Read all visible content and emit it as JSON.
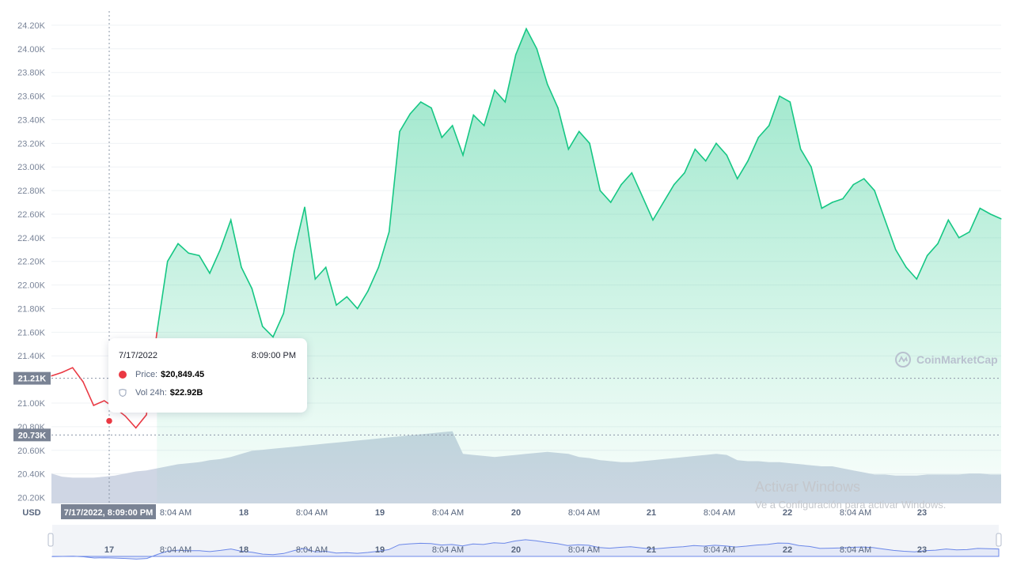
{
  "chart_data": {
    "type": "area",
    "currency": "USD",
    "y_ticks": [
      "24.20K",
      "24.00K",
      "23.80K",
      "23.60K",
      "23.40K",
      "23.20K",
      "23.00K",
      "22.80K",
      "22.60K",
      "22.40K",
      "22.20K",
      "22.00K",
      "21.80K",
      "21.60K",
      "21.40K",
      "21.00K",
      "20.80K",
      "20.60K",
      "20.40K",
      "20.20K"
    ],
    "ylim": [
      20150,
      24320
    ],
    "x_ticks": [
      "8:04 AM",
      "18",
      "8:04 AM",
      "19",
      "8:04 AM",
      "20",
      "8:04 AM",
      "21",
      "8:04 AM",
      "22",
      "8:04 AM",
      "23"
    ],
    "navigator_ticks": [
      "17",
      "8:04 AM",
      "18",
      "8:04 AM",
      "19",
      "8:04 AM",
      "20",
      "8:04 AM",
      "21",
      "8:04 AM",
      "22",
      "8:04 AM",
      "23"
    ],
    "reference_labels": [
      {
        "label": "21.21K",
        "value": 21210
      },
      {
        "label": "20.73K",
        "value": 20730
      }
    ],
    "crosshair_label": "7/17/2022, 8:09:00 PM",
    "price_series": {
      "x": [
        0,
        2,
        4,
        6,
        8,
        10,
        12,
        14,
        16,
        18,
        20,
        22,
        24,
        26,
        28,
        30,
        32,
        34,
        36,
        38,
        40,
        42,
        44,
        46,
        48,
        50,
        52,
        54,
        56,
        58,
        60,
        62,
        64,
        66,
        68,
        70,
        72,
        74,
        76,
        78,
        80,
        82,
        84,
        86,
        88,
        90,
        92,
        94,
        96,
        98,
        100,
        102,
        104,
        106,
        108,
        110,
        112,
        114,
        116,
        118,
        120,
        122,
        124,
        126,
        128,
        130,
        132,
        134,
        136,
        138,
        140,
        142,
        144,
        146,
        148,
        150,
        152,
        154,
        156,
        158,
        160,
        162,
        164,
        166,
        168,
        170,
        172,
        174,
        176,
        178,
        180
      ],
      "values": [
        21230,
        21260,
        21300,
        21180,
        20980,
        21020,
        20960,
        20890,
        20790,
        20900,
        21600,
        22200,
        22350,
        22270,
        22250,
        22100,
        22300,
        22550,
        22150,
        21970,
        21650,
        21560,
        21760,
        22280,
        22660,
        22050,
        22150,
        21830,
        21900,
        21800,
        21950,
        22150,
        22450,
        23300,
        23450,
        23550,
        23500,
        23250,
        23350,
        23100,
        23440,
        23350,
        23650,
        23550,
        23950,
        24170,
        24000,
        23700,
        23500,
        23150,
        23300,
        23200,
        22800,
        22700,
        22850,
        22950,
        22750,
        22550,
        22700,
        22850,
        22950,
        23150,
        23050,
        23200,
        23100,
        22900,
        23050,
        23250,
        23350,
        23600,
        23550,
        23150,
        23000,
        22650,
        22700,
        22730,
        22850,
        22900,
        22800,
        22550,
        22300,
        22150,
        22050,
        22250,
        22350,
        22550,
        22400,
        22450,
        22650,
        22600,
        22560
      ],
      "color_up": "#16c784",
      "color_down": "#ea3943"
    },
    "volume_series": {
      "x": [
        0,
        2,
        4,
        6,
        8,
        10,
        12,
        14,
        16,
        18,
        20,
        22,
        24,
        26,
        28,
        30,
        32,
        34,
        36,
        38,
        40,
        42,
        44,
        46,
        48,
        50,
        52,
        54,
        56,
        58,
        60,
        62,
        64,
        66,
        68,
        70,
        72,
        74,
        76,
        78,
        80,
        82,
        84,
        86,
        88,
        90,
        92,
        94,
        96,
        98,
        100,
        102,
        104,
        106,
        108,
        110,
        112,
        114,
        116,
        118,
        120,
        122,
        124,
        126,
        128,
        130,
        132,
        134,
        136,
        138,
        140,
        142,
        144,
        146,
        148,
        150,
        152,
        154,
        156,
        158,
        160,
        162,
        164,
        166,
        168,
        170,
        172,
        174,
        176,
        178,
        180
      ],
      "values": [
        22.9,
        22.6,
        22.5,
        22.5,
        22.5,
        22.6,
        22.7,
        22.9,
        23.1,
        23.2,
        23.4,
        23.6,
        23.8,
        23.9,
        24.0,
        24.2,
        24.3,
        24.5,
        24.8,
        25.1,
        25.2,
        25.3,
        25.4,
        25.5,
        25.6,
        25.7,
        25.8,
        25.9,
        26.0,
        26.1,
        26.2,
        26.3,
        26.4,
        26.5,
        26.6,
        26.7,
        26.8,
        26.9,
        27.0,
        24.8,
        24.7,
        24.6,
        24.5,
        24.6,
        24.7,
        24.8,
        24.9,
        25.0,
        24.9,
        24.8,
        24.5,
        24.4,
        24.2,
        24.1,
        24.0,
        24.0,
        24.1,
        24.2,
        24.3,
        24.4,
        24.5,
        24.6,
        24.7,
        24.8,
        24.7,
        24.2,
        24.1,
        24.1,
        24.0,
        24.0,
        23.9,
        23.8,
        23.7,
        23.6,
        23.6,
        23.4,
        23.2,
        23.0,
        22.8,
        22.8,
        22.7,
        22.7,
        22.7,
        22.8,
        22.8,
        22.8,
        22.8,
        22.9,
        22.9,
        22.8,
        22.8
      ]
    }
  },
  "tooltip": {
    "date": "7/17/2022",
    "time": "8:09:00 PM",
    "price_label": "Price:",
    "price_value": "$20,849.45",
    "volume_label": "Vol 24h:",
    "volume_value": "$22.92B"
  },
  "watermark": "CoinMarketCap",
  "windows_activation": {
    "title": "Activar Windows",
    "subtitle": "Ve a Configuración para activar Windows."
  },
  "colors": {
    "up": "#16c784",
    "down": "#ea3943",
    "volume": "#cfd6e4",
    "navigator_line": "#6b87e8",
    "navigator_fill": "#e4e9f8"
  }
}
